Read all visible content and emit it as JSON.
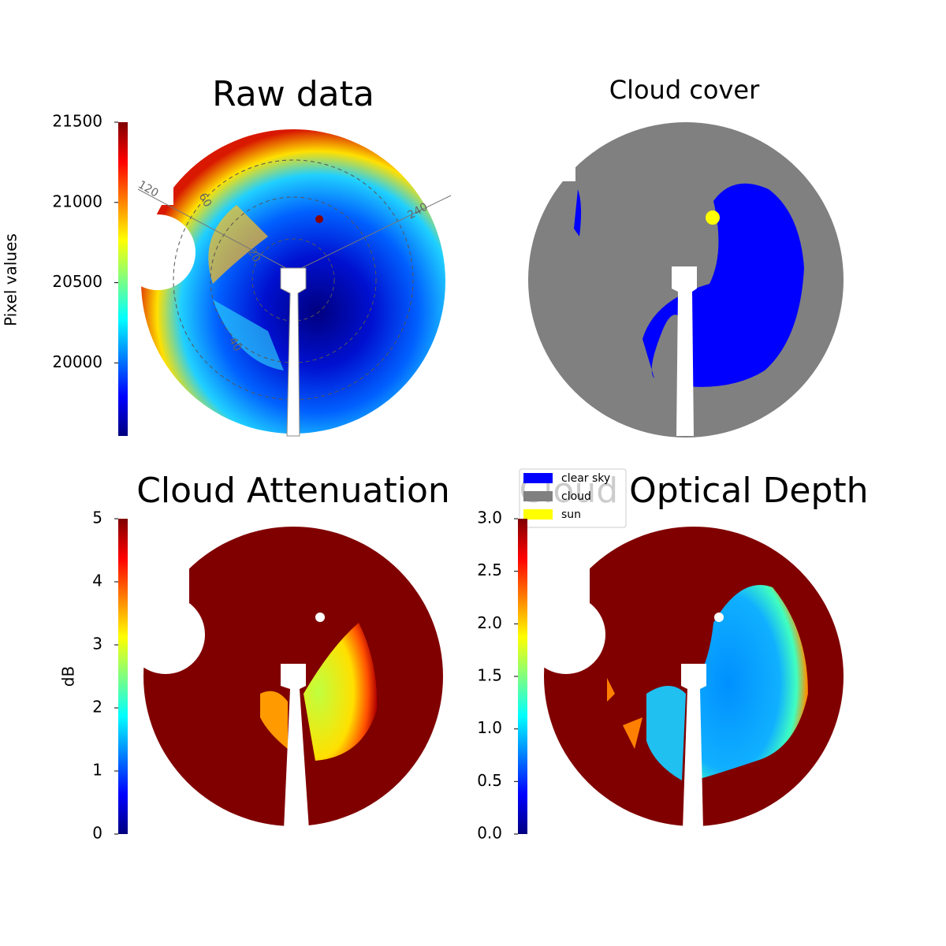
{
  "chart_data": [
    {
      "type": "image",
      "title": "Raw data",
      "ylabel": "Pixel values",
      "colormap": "jet",
      "ylim": [
        19545,
        21500
      ],
      "yticks": [
        20000,
        20500,
        21000,
        21500
      ],
      "angle_ticks": [
        120,
        240
      ],
      "radius_ticks": [
        20,
        40,
        60
      ]
    },
    {
      "type": "image",
      "title": "Cloud cover",
      "series": [
        {
          "name": "clear sky",
          "color": "#0000ff"
        },
        {
          "name": "cloud",
          "color": "#808080"
        },
        {
          "name": "sun",
          "color": "#ffff00"
        }
      ]
    },
    {
      "type": "image",
      "title": "Cloud Attenuation",
      "ylabel": "dB",
      "colormap": "jet",
      "ylim": [
        0,
        5
      ],
      "yticks": [
        0,
        1,
        2,
        3,
        4,
        5
      ]
    },
    {
      "type": "image",
      "title": "Cloud Optical Depth",
      "colormap": "jet",
      "ylim": [
        0,
        3
      ],
      "yticks": [
        {
          "value": 0,
          "label": "0.0"
        },
        0.5,
        {
          "value": 1,
          "label": "1.0"
        },
        1.5,
        {
          "value": 2,
          "label": "2.0"
        },
        2.5,
        {
          "value": 3,
          "label": "3.0"
        }
      ]
    }
  ]
}
